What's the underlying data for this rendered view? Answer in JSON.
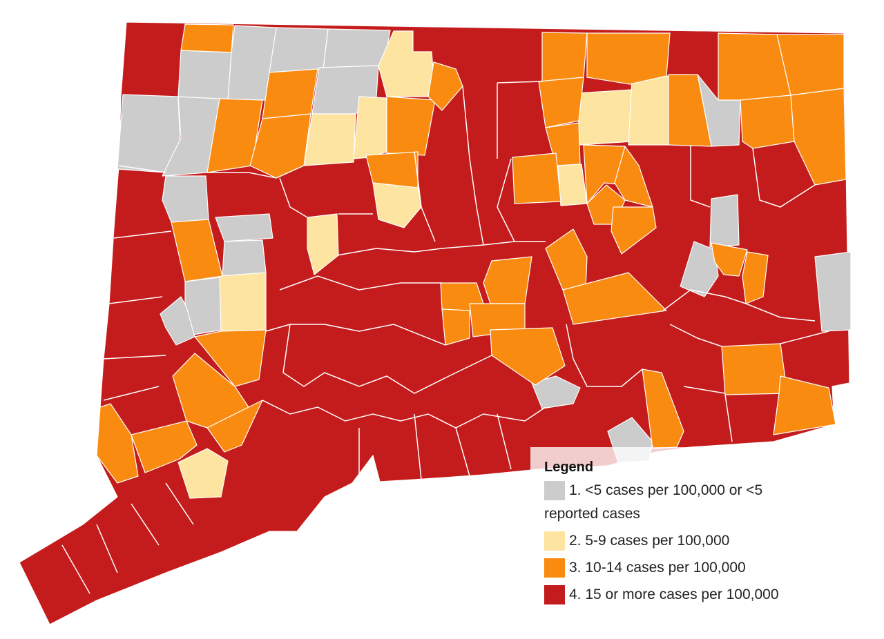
{
  "colors": {
    "cat1": "#cccccc",
    "cat2": "#fde4a0",
    "cat3": "#f98b10",
    "cat4": "#c41c1c"
  },
  "legend": {
    "title": "Legend",
    "items": [
      {
        "label": "1. <5 cases per 100,000 or <5",
        "label_cont": "reported cases",
        "color_key": "cat1"
      },
      {
        "label": "2. 5-9 cases per 100,000",
        "color_key": "cat2"
      },
      {
        "label": "3. 10-14 cases per 100,000",
        "color_key": "cat3"
      },
      {
        "label": "4. 15 or more cases per 100,000",
        "color_key": "cat4"
      }
    ]
  }
}
